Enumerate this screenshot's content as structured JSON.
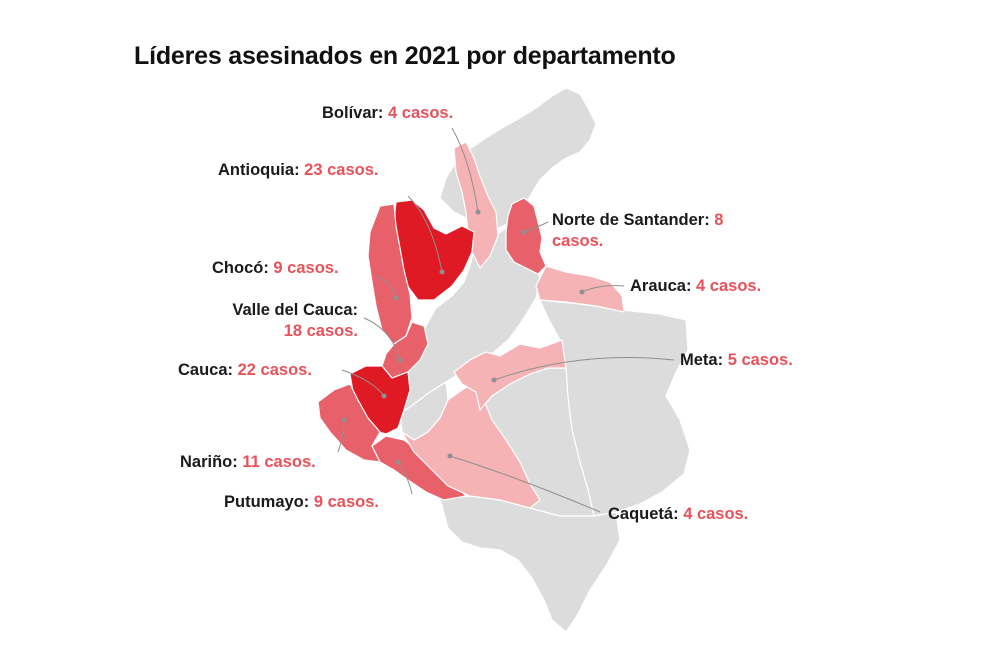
{
  "title": "Líderes asesinados en 2021 por departamento",
  "colors": {
    "base": "#dcdcdc",
    "border": "#ffffff",
    "level_low": "#f5b3b5",
    "level_mid": "#e8616a",
    "level_high": "#e01a24",
    "leader_line": "#8f8f8f",
    "value_text": "#e8525a"
  },
  "departments": [
    {
      "key": "bolivar",
      "name": "Bolívar:",
      "value": "4 casos.",
      "cases": 4
    },
    {
      "key": "antioquia",
      "name": "Antioquia:",
      "value": "23 casos.",
      "cases": 23
    },
    {
      "key": "norte_santander",
      "name": "Norte de Santander:",
      "value": "8",
      "value2": "casos.",
      "cases": 8
    },
    {
      "key": "choco",
      "name": "Chocó:",
      "value": "9 casos.",
      "cases": 9
    },
    {
      "key": "arauca",
      "name": "Arauca:",
      "value": "4 casos.",
      "cases": 4
    },
    {
      "key": "valle",
      "name": "Valle del Cauca:",
      "value": "18 casos.",
      "cases": 18
    },
    {
      "key": "meta",
      "name": "Meta:",
      "value": "5 casos.",
      "cases": 5
    },
    {
      "key": "cauca",
      "name": "Cauca:",
      "value": "22 casos.",
      "cases": 22
    },
    {
      "key": "narino",
      "name": "Nariño:",
      "value": "11 casos.",
      "cases": 11
    },
    {
      "key": "putumayo",
      "name": "Putumayo:",
      "value": "9 casos.",
      "cases": 9
    },
    {
      "key": "caqueta",
      "name": "Caquetá:",
      "value": "4 casos.",
      "cases": 4
    }
  ]
}
